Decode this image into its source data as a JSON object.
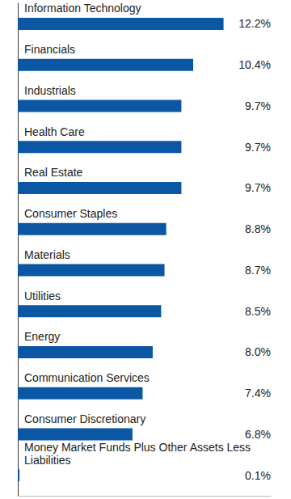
{
  "chart_data": {
    "type": "bar",
    "orientation": "horizontal",
    "categories": [
      "Information Technology",
      "Financials",
      "Industrials",
      "Health Care",
      "Real Estate",
      "Consumer Staples",
      "Materials",
      "Utilities",
      "Energy",
      "Communication Services",
      "Consumer Discretionary",
      "Money Market Funds Plus Other Assets Less Liabilities"
    ],
    "values": [
      12.2,
      10.4,
      9.7,
      9.7,
      9.7,
      8.8,
      8.7,
      8.5,
      8.0,
      7.4,
      6.8,
      0.1
    ],
    "value_labels": [
      "12.2%",
      "10.4%",
      "9.7%",
      "9.7%",
      "9.7%",
      "8.8%",
      "8.7%",
      "8.5%",
      "8.0%",
      "7.4%",
      "6.8%",
      "0.1%"
    ],
    "color": "#0b57a4",
    "xlim": [
      0,
      15
    ],
    "grid": false,
    "data_labels": true,
    "tick_labels": false
  }
}
